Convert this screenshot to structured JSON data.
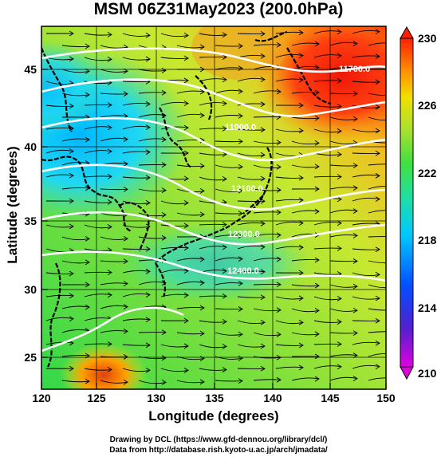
{
  "title": "MSM 06Z31May2023 (200.0hPa)",
  "x_axis": {
    "label": "Longitude (degrees)",
    "ticks": [
      "120",
      "125",
      "130",
      "135",
      "140",
      "145",
      "150"
    ]
  },
  "y_axis": {
    "label": "Latitude  (degrees)",
    "ticks": [
      "45",
      "40",
      "35",
      "30",
      "25"
    ]
  },
  "colorbar": {
    "ticks": [
      "230",
      "226",
      "222",
      "218",
      "214",
      "210"
    ],
    "range": [
      210,
      230
    ],
    "colors": [
      "#e000e0",
      "#3020d0",
      "#0070ff",
      "#00d0ff",
      "#30e070",
      "#90e040",
      "#e8e000",
      "#ff9000",
      "#ff2000"
    ]
  },
  "contours": [
    {
      "label": "11700.0"
    },
    {
      "label": "11900.0"
    },
    {
      "label": "12100.0"
    },
    {
      "label": "12300.0"
    },
    {
      "label": "12400.0"
    }
  ],
  "credits": {
    "line1": "Drawing by DCL (https://www.gfd-dennou.org/library/dcl/)",
    "line2": "Data from http://database.rish.kyoto-u.ac.jp/arch/jmadata/"
  }
}
